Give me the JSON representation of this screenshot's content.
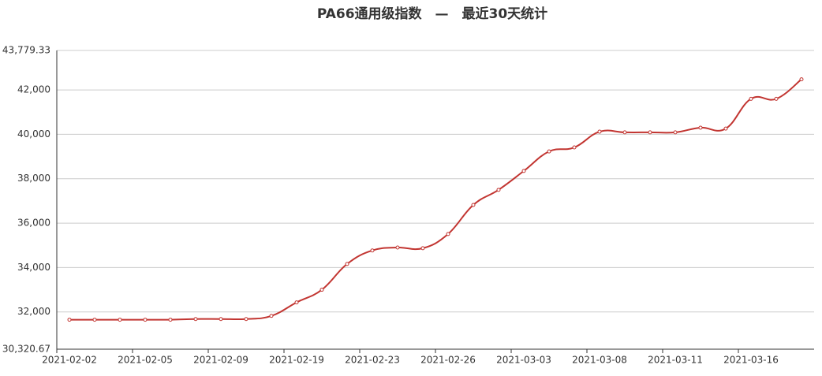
{
  "chart_data": {
    "type": "line",
    "title": "PA66通用级指数　—　最近30天统计",
    "categories": [
      "2021-02-02",
      null,
      null,
      "2021-02-05",
      null,
      null,
      "2021-02-09",
      null,
      null,
      "2021-02-19",
      null,
      null,
      "2021-02-23",
      null,
      null,
      "2021-02-26",
      null,
      null,
      "2021-03-03",
      null,
      null,
      "2021-03-08",
      null,
      null,
      "2021-03-11",
      null,
      null,
      "2021-03-16",
      null,
      null
    ],
    "series": [
      {
        "color": "#c23531",
        "values": [
          31650,
          31650,
          31650,
          31650,
          31650,
          31680,
          31680,
          31680,
          31820,
          32430,
          33000,
          34160,
          34770,
          34900,
          34870,
          35510,
          36820,
          37500,
          38350,
          39230,
          39410,
          40120,
          40090,
          40090,
          40090,
          40300,
          40260,
          41600,
          41600,
          42480
        ]
      }
    ],
    "ylim": [
      30320.67,
      43779.33
    ],
    "yticks": [
      {
        "value": 30320.67,
        "label": "30,320.67"
      },
      {
        "value": 32000,
        "label": "32,000"
      },
      {
        "value": 34000,
        "label": "34,000"
      },
      {
        "value": 36000,
        "label": "36,000"
      },
      {
        "value": 38000,
        "label": "38,000"
      },
      {
        "value": 40000,
        "label": "40,000"
      },
      {
        "value": 42000,
        "label": "42,000"
      },
      {
        "value": 43779.33,
        "label": "43,779.33"
      }
    ],
    "grid": true
  }
}
